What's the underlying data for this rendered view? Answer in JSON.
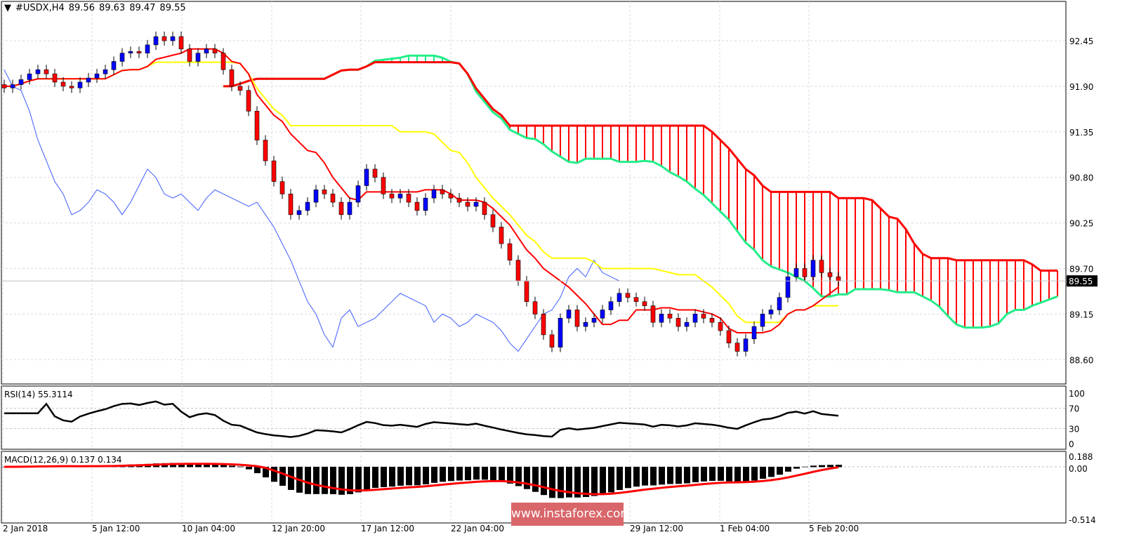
{
  "header": {
    "symbol": "#USDX,H4",
    "open": "89.56",
    "high": "89.63",
    "low": "89.47",
    "close": "89.55"
  },
  "rsi_label": {
    "name": "RSI(14)",
    "value": "55.3114"
  },
  "macd_label": {
    "name": "MACD(12,26,9)",
    "macd": "0.137",
    "signal": "0.134"
  },
  "watermark": "www.instaforex.com",
  "colors": {
    "bull": "#0000ff",
    "bear": "#ff0000",
    "tenkan": "#ff0000",
    "kijun": "#ffff00",
    "chikou": "#3b5bff",
    "senkou_a": "#22ee88",
    "senkou_b": "#ff0000",
    "grid": "#d8d8e8"
  },
  "chart_data": [
    {
      "type": "candlestick",
      "indicator": "Ichimoku",
      "ylim": [
        88.25,
        92.9
      ],
      "y_ticks": [
        "92.45",
        "91.90",
        "91.35",
        "90.80",
        "90.25",
        "89.70",
        "89.15",
        "88.60"
      ],
      "current_price": "89.55",
      "x_ticks": [
        "2 Jan 2018",
        "5 Jan 12:00",
        "10 Jan 04:00",
        "12 Jan 20:00",
        "17 Jan 12:00",
        "22 Jan 04:00",
        "29 Jan 12:00",
        "1 Feb 04:00",
        "5 Feb 20:00"
      ],
      "x_tick_bars": [
        0,
        12,
        32,
        52,
        72,
        92,
        109,
        128,
        141
      ],
      "close": [
        91.88,
        91.92,
        91.98,
        92.05,
        92.1,
        92.05,
        91.95,
        91.9,
        91.88,
        91.95,
        92.0,
        92.05,
        92.1,
        92.2,
        92.3,
        92.32,
        92.3,
        92.4,
        92.5,
        92.45,
        92.5,
        92.35,
        92.2,
        92.3,
        92.35,
        92.3,
        92.1,
        91.9,
        91.85,
        91.6,
        91.25,
        91.0,
        90.75,
        90.6,
        90.35,
        90.4,
        90.5,
        90.65,
        90.6,
        90.5,
        90.35,
        90.5,
        90.7,
        90.9,
        90.8,
        90.6,
        90.55,
        90.6,
        90.5,
        90.4,
        90.55,
        90.65,
        90.6,
        90.55,
        90.5,
        90.45,
        90.5,
        90.35,
        90.2,
        90.0,
        89.8,
        89.55,
        89.3,
        89.15,
        88.9,
        88.75,
        89.1,
        89.2,
        89.0,
        89.05,
        89.1,
        89.2,
        89.3,
        89.4,
        89.35,
        89.3,
        89.25,
        89.05,
        89.15,
        89.1,
        89.0,
        89.05,
        89.15,
        89.1,
        89.05,
        88.95,
        88.8,
        88.7,
        88.85,
        89.0,
        89.15,
        89.2,
        89.35,
        89.6,
        89.7,
        89.6,
        89.8,
        89.65,
        89.6,
        89.55
      ]
    },
    {
      "type": "line",
      "name": "RSI(14)",
      "ylim": [
        0,
        100
      ],
      "y_ticks": [
        "100",
        "70",
        "30",
        "0"
      ],
      "levels": [
        30,
        70
      ]
    },
    {
      "type": "bar",
      "name": "MACD(12,26,9)",
      "ylim": [
        -0.514,
        0.188
      ],
      "y_ticks": [
        "0.188",
        "0.00",
        "-0.514"
      ]
    }
  ]
}
